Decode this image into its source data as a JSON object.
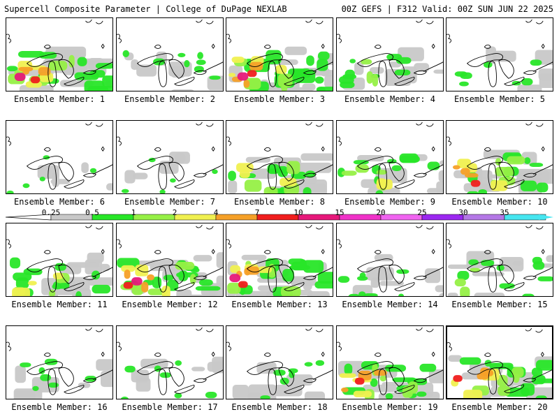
{
  "header": {
    "title": "Supercell Composite Parameter | College of DuPage NEXLAB",
    "run_info": "00Z GEFS | F312 Valid: 00Z SUN JUN 22 2025"
  },
  "colorbar": {
    "labels": [
      "0.25",
      "0.5",
      "1",
      "2",
      "4",
      "7",
      "10",
      "15",
      "20",
      "25",
      "30",
      "35"
    ],
    "colors": [
      "#c8c8c8",
      "#28e628",
      "#96f046",
      "#f0f050",
      "#f5a028",
      "#f01e1e",
      "#e6187a",
      "#f032c8",
      "#f064f0",
      "#9b28f0",
      "#b478e6",
      "#46e6f0"
    ]
  },
  "panels": [
    {
      "label": "Ensemble Member: 1",
      "level": 0.9
    },
    {
      "label": "Ensemble Member: 2",
      "level": 0.35
    },
    {
      "label": "Ensemble Member: 3",
      "level": 0.95
    },
    {
      "label": "Ensemble Member: 4",
      "level": 0.45
    },
    {
      "label": "Ensemble Member: 5",
      "level": 0.3
    },
    {
      "label": "Ensemble Member: 6",
      "level": 0.1
    },
    {
      "label": "Ensemble Member: 7",
      "level": 0.08
    },
    {
      "label": "Ensemble Member: 8",
      "level": 0.7
    },
    {
      "label": "Ensemble Member: 9",
      "level": 0.6
    },
    {
      "label": "Ensemble Member: 10",
      "level": 0.8
    },
    {
      "label": "Ensemble Member: 11",
      "level": 0.65
    },
    {
      "label": "Ensemble Member: 12",
      "level": 0.85
    },
    {
      "label": "Ensemble Member: 13",
      "level": 0.85
    },
    {
      "label": "Ensemble Member: 14",
      "level": 0.35
    },
    {
      "label": "Ensemble Member: 15",
      "level": 0.45
    },
    {
      "label": "Ensemble Member: 16",
      "level": 0.3
    },
    {
      "label": "Ensemble Member: 17",
      "level": 0.3
    },
    {
      "label": "Ensemble Member: 18",
      "level": 0.3
    },
    {
      "label": "Ensemble Member: 19",
      "level": 0.75
    },
    {
      "label": "Ensemble Member: 20",
      "level": 0.8,
      "selected": true
    }
  ]
}
